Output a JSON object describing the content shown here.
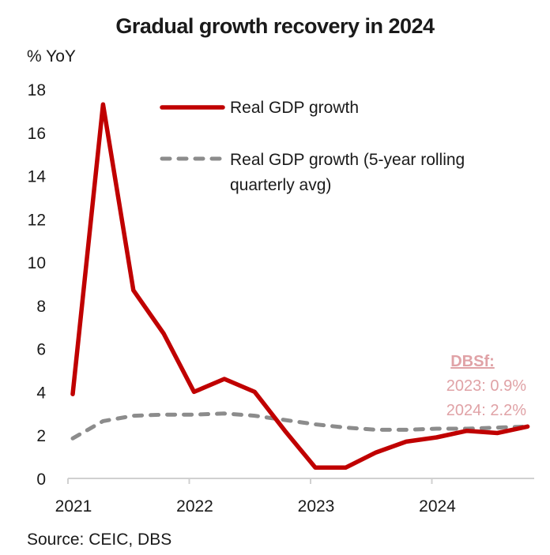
{
  "chart_data": {
    "type": "line",
    "title": "Gradual growth recovery in 2024",
    "ylabel": "% YoY",
    "xlabel": "",
    "ylim": [
      0,
      18
    ],
    "yticks": [
      0,
      2,
      4,
      6,
      8,
      10,
      12,
      14,
      16,
      18
    ],
    "xtick_labels": [
      "2021",
      "2022",
      "2023",
      "2024"
    ],
    "x": [
      "Q1 2021",
      "Q2 2021",
      "Q3 2021",
      "Q4 2021",
      "Q1 2022",
      "Q2 2022",
      "Q3 2022",
      "Q4 2022",
      "Q1 2023",
      "Q2 2023",
      "Q3 2023",
      "Q4 2023",
      "Q1 2024",
      "Q2 2024",
      "Q3 2024",
      "Q4 2024"
    ],
    "series": [
      {
        "name": "Real GDP growth",
        "style": "solid",
        "color": "#c00000",
        "values": [
          3.9,
          17.3,
          8.7,
          6.7,
          4.0,
          4.6,
          4.0,
          2.2,
          0.5,
          0.5,
          1.2,
          1.7,
          1.9,
          2.2,
          2.1,
          2.4
        ]
      },
      {
        "name": "Real GDP growth (5-year rolling quarterly avg)",
        "style": "dashed",
        "color": "#8c8c8c",
        "values": [
          1.85,
          2.65,
          2.9,
          2.95,
          2.95,
          3.0,
          2.9,
          2.7,
          2.5,
          2.35,
          2.25,
          2.25,
          2.3,
          2.3,
          2.35,
          2.4
        ]
      }
    ],
    "legend": {
      "placement": "top-right",
      "entries": [
        {
          "label_lines": [
            "Real GDP growth"
          ]
        },
        {
          "label_lines": [
            "Real GDP growth (5-year rolling",
            "quarterly avg)"
          ]
        }
      ]
    },
    "annotation": {
      "header": "DBSf:",
      "lines": [
        "2023: 0.9%",
        "2024: 2.2%"
      ],
      "color": "#e0a2a6"
    },
    "grid": false,
    "source": "Source: CEIC, DBS"
  }
}
